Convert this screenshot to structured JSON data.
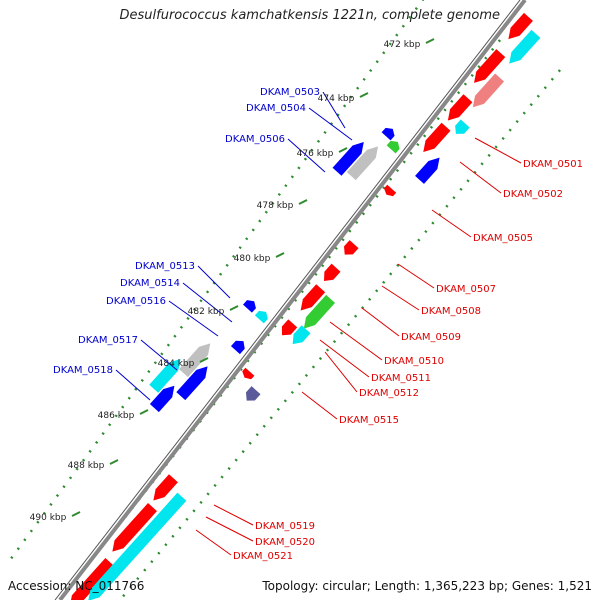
{
  "title": "Desulfurococcus kamchatkensis 1221n, complete genome",
  "footer": {
    "accession": "Accession: NC_011766",
    "topology": "Topology: circular; Length: 1,365,223 bp; Genes: 1,521"
  },
  "colors": {
    "forward_cds": "#ff0000",
    "forward_light": "#f08080",
    "reverse_cds": "#0000ff",
    "rna": "#00e5ee",
    "pseudo": "#c0c0c0",
    "green": "#33cc33",
    "purple": "#5a5a9a",
    "backbone": "#888888",
    "tick_green": "#2e8b2e",
    "label_forward": "#dd0000",
    "label_reverse": "#0000cc"
  },
  "ticks": [
    "472 kbp",
    "474 kbp",
    "476 kbp",
    "478 kbp",
    "480 kbp",
    "482 kbp",
    "484 kbp",
    "486 kbp",
    "488 kbp",
    "490 kbp"
  ],
  "reverse_labels": [
    "DKAM_0503",
    "DKAM_0504",
    "DKAM_0506",
    "DKAM_0513",
    "DKAM_0514",
    "DKAM_0516",
    "DKAM_0517",
    "DKAM_0518"
  ],
  "forward_labels": [
    "DKAM_0501",
    "DKAM_0502",
    "DKAM_0505",
    "DKAM_0507",
    "DKAM_0508",
    "DKAM_0509",
    "DKAM_0510",
    "DKAM_0511",
    "DKAM_0512",
    "DKAM_0515",
    "DKAM_0519",
    "DKAM_0520",
    "DKAM_0521"
  ]
}
